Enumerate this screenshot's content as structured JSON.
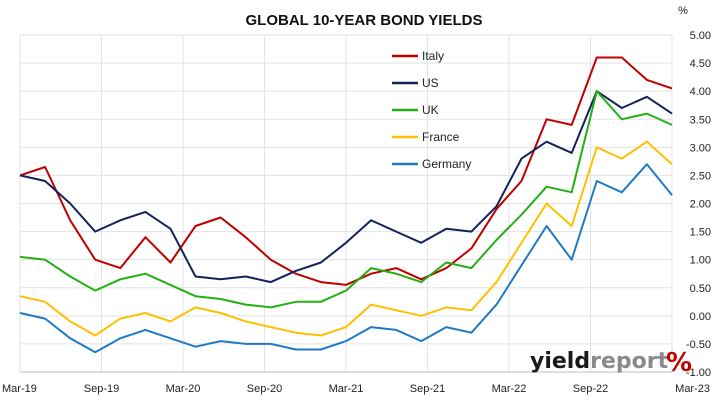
{
  "chart_data": {
    "type": "line",
    "title": "GLOBAL 10-YEAR BOND YIELDS",
    "ylabel": "%",
    "ylim": [
      -1.0,
      5.0
    ],
    "yticks": [
      "5.00",
      "4.50",
      "4.00",
      "3.50",
      "3.00",
      "2.50",
      "2.00",
      "1.50",
      "1.00",
      "0.50",
      "0.00",
      "-0.50",
      "-1.00"
    ],
    "xticks": [
      "Mar-19",
      "Sep-19",
      "Mar-20",
      "Sep-20",
      "Mar-21",
      "Sep-21",
      "Mar-22",
      "Sep-22",
      "Mar-23"
    ],
    "grid": true,
    "legend_position": "top-center",
    "x": [
      "Mar-19",
      "May-19",
      "Jul-19",
      "Aug-19",
      "Oct-19",
      "Dec-19",
      "Feb-20",
      "Mar-20",
      "Apr-20",
      "Jun-20",
      "Aug-20",
      "Oct-20",
      "Dec-20",
      "Feb-21",
      "Apr-21",
      "Jun-21",
      "Aug-21",
      "Oct-21",
      "Dec-21",
      "Feb-22",
      "Apr-22",
      "Jun-22",
      "Aug-22",
      "Oct-22",
      "Dec-22",
      "Feb-23",
      "Mar-23"
    ],
    "series": [
      {
        "name": "Italy",
        "color": "#c00000",
        "values": [
          2.5,
          2.65,
          1.7,
          1.0,
          0.85,
          1.4,
          0.95,
          1.6,
          1.75,
          1.4,
          1.0,
          0.75,
          0.6,
          0.55,
          0.75,
          0.85,
          0.65,
          0.85,
          1.2,
          1.9,
          2.4,
          3.5,
          3.4,
          4.6,
          4.6,
          4.2,
          4.05
        ]
      },
      {
        "name": "US",
        "color": "#13235b",
        "values": [
          2.5,
          2.4,
          2.0,
          1.5,
          1.7,
          1.85,
          1.55,
          0.7,
          0.65,
          0.7,
          0.6,
          0.8,
          0.95,
          1.3,
          1.7,
          1.5,
          1.3,
          1.55,
          1.5,
          1.95,
          2.8,
          3.1,
          2.9,
          4.0,
          3.7,
          3.9,
          3.6
        ]
      },
      {
        "name": "UK",
        "color": "#22b014",
        "values": [
          1.05,
          1.0,
          0.7,
          0.45,
          0.65,
          0.75,
          0.55,
          0.35,
          0.3,
          0.2,
          0.15,
          0.25,
          0.25,
          0.45,
          0.85,
          0.75,
          0.6,
          0.95,
          0.85,
          1.35,
          1.8,
          2.3,
          2.2,
          4.0,
          3.5,
          3.6,
          3.4
        ]
      },
      {
        "name": "France",
        "color": "#ffc000",
        "values": [
          0.35,
          0.25,
          -0.1,
          -0.35,
          -0.05,
          0.05,
          -0.1,
          0.15,
          0.05,
          -0.1,
          -0.2,
          -0.3,
          -0.35,
          -0.2,
          0.2,
          0.1,
          0.0,
          0.15,
          0.1,
          0.6,
          1.3,
          2.0,
          1.6,
          3.0,
          2.8,
          3.1,
          2.7
        ]
      },
      {
        "name": "Germany",
        "color": "#1f7ac4",
        "values": [
          0.05,
          -0.05,
          -0.4,
          -0.65,
          -0.4,
          -0.25,
          -0.4,
          -0.55,
          -0.45,
          -0.5,
          -0.5,
          -0.6,
          -0.6,
          -0.45,
          -0.2,
          -0.25,
          -0.45,
          -0.2,
          -0.3,
          0.2,
          0.9,
          1.6,
          1.0,
          2.4,
          2.2,
          2.7,
          2.15
        ]
      }
    ]
  },
  "brand": {
    "name_dark": "yield",
    "name_light": "report",
    "mark": "%",
    "dark_color": "#1a1a1a",
    "light_color": "#8a8a8a",
    "mark_color": "#c00000"
  }
}
